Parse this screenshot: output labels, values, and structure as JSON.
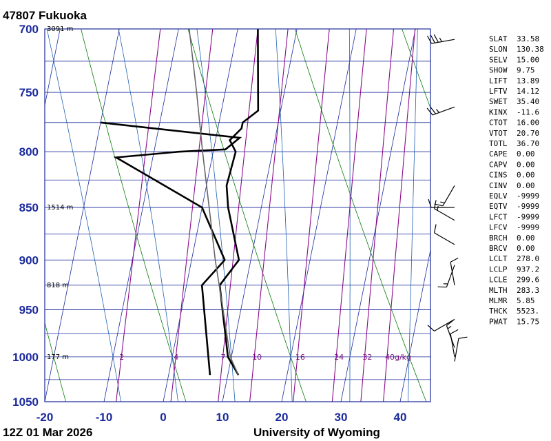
{
  "header": {
    "station": "47807  Fukuoka",
    "time": "12Z 01 Mar 2026",
    "source": "University of Wyoming"
  },
  "chart_data": {
    "type": "line",
    "subtype": "skew-T log-P sounding",
    "y_axis": {
      "scale": "log",
      "range": [
        1050,
        700
      ],
      "ticks": [
        700,
        750,
        800,
        850,
        900,
        950,
        1000,
        1050
      ],
      "tick_labels": [
        "700",
        "750",
        "800",
        "850",
        "900",
        "950",
        "1000",
        "1050"
      ]
    },
    "x_axis": {
      "range": [
        -20,
        45
      ],
      "ticks": [
        -20,
        -10,
        0,
        10,
        20,
        30,
        40
      ],
      "tick_labels": [
        "-20",
        "-10",
        "0",
        "10",
        "20",
        "30",
        "40"
      ]
    },
    "height_labels": [
      {
        "p": 700,
        "text": "3091 m"
      },
      {
        "p": 850,
        "text": "1514 m"
      },
      {
        "p": 925,
        "text": "818 m"
      },
      {
        "p": 1000,
        "text": "177 m"
      }
    ],
    "mixing_ratio_labels": [
      "2",
      "4",
      "7",
      "10",
      "16",
      "24",
      "32",
      "40g/kg"
    ],
    "mixing_ratios": [
      2,
      4,
      7,
      10,
      16,
      24,
      32,
      40
    ],
    "series": [
      {
        "name": "",
        "role": "temperature",
        "points": [
          [
            1020,
            11.8
          ],
          [
            1000,
            9.4
          ],
          [
            925,
            5.6
          ],
          [
            900,
            8.0
          ],
          [
            850,
            4.4
          ],
          [
            830,
            3.4
          ],
          [
            800,
            3.8
          ],
          [
            790,
            2.4
          ],
          [
            780,
            4.0
          ],
          [
            775,
            4.0
          ],
          [
            765,
            6.2
          ],
          [
            700,
            3.4
          ]
        ]
      },
      {
        "name": "",
        "role": "dewpoint",
        "points": [
          [
            1020,
            7.0
          ],
          [
            925,
            2.6
          ],
          [
            900,
            5.6
          ],
          [
            850,
            0.0
          ],
          [
            805,
            -16.2
          ],
          [
            800,
            -5.8
          ],
          [
            798,
            2.0
          ],
          [
            788,
            4.0
          ],
          [
            775,
            -20.0
          ]
        ]
      },
      {
        "name": "",
        "role": "parcel",
        "points": [
          [
            1020,
            11.8
          ],
          [
            1000,
            9.8
          ],
          [
            950,
            7.0
          ],
          [
            900,
            4.0
          ],
          [
            850,
            1.2
          ],
          [
            800,
            -1.8
          ],
          [
            750,
            -4.8
          ],
          [
            700,
            -8.2
          ]
        ]
      }
    ],
    "dry_adiabats_T1000": [
      -20,
      0,
      20,
      40,
      60,
      80,
      100,
      120
    ],
    "moist_adiabats_T1000": [
      -10,
      0,
      10,
      20,
      30,
      40
    ],
    "isotherm_count_note": "",
    "wind_barbs": [
      {
        "p": 708,
        "dir": 260,
        "spd": 35
      },
      {
        "p": 762,
        "dir": 250,
        "spd": 25
      },
      {
        "p": 830,
        "dir": 210,
        "spd": 15
      },
      {
        "p": 850,
        "dir": 270,
        "spd": 10
      },
      {
        "p": 862,
        "dir": 300,
        "spd": 15
      },
      {
        "p": 885,
        "dir": 300,
        "spd": 10
      },
      {
        "p": 905,
        "dir": 200,
        "spd": 15
      },
      {
        "p": 925,
        "dir": 350,
        "spd": 10
      },
      {
        "p": 960,
        "dir": 240,
        "spd": 10
      },
      {
        "p": 990,
        "dir": 340,
        "spd": 15
      },
      {
        "p": 1000,
        "dir": 350,
        "spd": 10
      },
      {
        "p": 1005,
        "dir": 10,
        "spd": 10
      }
    ],
    "grid": true
  },
  "indices": [
    {
      "key": "SLAT",
      "value": "33.58"
    },
    {
      "key": "SLON",
      "value": "130.38"
    },
    {
      "key": "SELV",
      "value": "15.00"
    },
    {
      "key": "SHOW",
      "value": "9.75"
    },
    {
      "key": "LIFT",
      "value": "13.89"
    },
    {
      "key": "LFTV",
      "value": "14.12"
    },
    {
      "key": "SWET",
      "value": "35.40"
    },
    {
      "key": "KINX",
      "value": "-11.6"
    },
    {
      "key": "CTOT",
      "value": "16.00"
    },
    {
      "key": "VTOT",
      "value": "20.70"
    },
    {
      "key": "TOTL",
      "value": "36.70"
    },
    {
      "key": "CAPE",
      "value": "0.00"
    },
    {
      "key": "CAPV",
      "value": "0.00"
    },
    {
      "key": "CINS",
      "value": "0.00"
    },
    {
      "key": "CINV",
      "value": "0.00"
    },
    {
      "key": "EQLV",
      "value": "-9999"
    },
    {
      "key": "EQTV",
      "value": "-9999"
    },
    {
      "key": "LFCT",
      "value": "-9999"
    },
    {
      "key": "LFCV",
      "value": "-9999"
    },
    {
      "key": "BRCH",
      "value": "0.00"
    },
    {
      "key": "BRCV",
      "value": "0.00"
    },
    {
      "key": "LCLT",
      "value": "278.0"
    },
    {
      "key": "LCLP",
      "value": "937.2"
    },
    {
      "key": "LCLE",
      "value": "299.6"
    },
    {
      "key": "MLTH",
      "value": "283.3"
    },
    {
      "key": "MLMR",
      "value": "5.85"
    },
    {
      "key": "THCK",
      "value": "5523."
    },
    {
      "key": "PWAT",
      "value": "15.75"
    }
  ],
  "colors": {
    "isobar": "#1b2a9c",
    "isotherm": "#1b2a9c",
    "dry_adiabat": "#0a7a0a",
    "moist_adiabat": "#1f5fb0",
    "mixing_ratio": "#8a0a8a",
    "temperature": "#000000",
    "dewpoint": "#000000",
    "parcel": "#666666"
  }
}
